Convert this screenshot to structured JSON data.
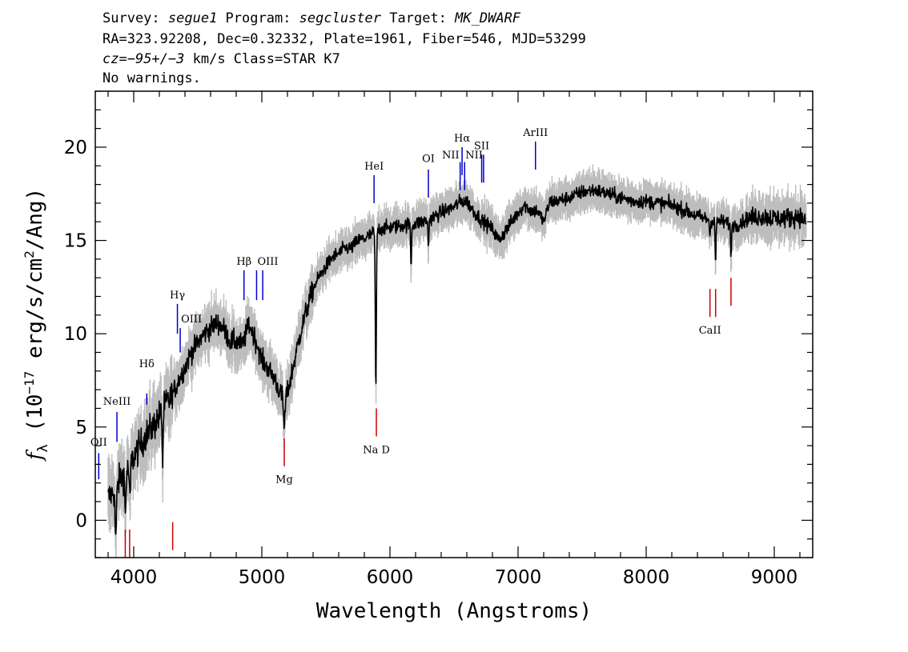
{
  "header": {
    "line1_parts": [
      {
        "text": "Survey: ",
        "italic": false
      },
      {
        "text": "segue1",
        "italic": true
      },
      {
        "text": " Program: ",
        "italic": false
      },
      {
        "text": "segcluster",
        "italic": true
      },
      {
        "text": " Target: ",
        "italic": false
      },
      {
        "text": "MK_DWARF",
        "italic": true
      }
    ],
    "line2": "RA=323.92208, Dec=0.32332, Plate=1961, Fiber=546, MJD=53299",
    "line3_parts": [
      {
        "text": "cz=",
        "italic": true
      },
      {
        "text": "−95+/−3",
        "italic": true
      },
      {
        "text": " km/s Class=STAR K7",
        "italic": false
      }
    ],
    "line4": "No warnings."
  },
  "chart_data": {
    "type": "line",
    "xlabel": "Wavelength (Angstroms)",
    "ylabel_parts": {
      "f": "f",
      "sub": "λ",
      "pre": " (10",
      "exp": "−17",
      "mid": " erg/s/cm",
      "exp2": "2",
      "post": "/Ang)"
    },
    "xlim": [
      3700,
      9300
    ],
    "ylim": [
      -2,
      23
    ],
    "xticks_major": [
      4000,
      5000,
      6000,
      7000,
      8000,
      9000
    ],
    "yticks_major": [
      0,
      5,
      10,
      15,
      20
    ],
    "xticks_minor_step": 200,
    "yticks_minor_step": 1,
    "colors": {
      "flux": "#000000",
      "noise": "#bdbdbd",
      "emission": "#0000cc",
      "absorption": "#cc0000"
    },
    "flux_anchors": [
      [
        3800,
        1.2
      ],
      [
        3850,
        1.6
      ],
      [
        3900,
        2.3
      ],
      [
        3950,
        2.6
      ],
      [
        4000,
        3.4
      ],
      [
        4050,
        4.0
      ],
      [
        4100,
        4.6
      ],
      [
        4150,
        5.0
      ],
      [
        4200,
        5.6
      ],
      [
        4250,
        6.2
      ],
      [
        4300,
        6.7
      ],
      [
        4350,
        7.5
      ],
      [
        4400,
        8.2
      ],
      [
        4450,
        9.0
      ],
      [
        4500,
        9.5
      ],
      [
        4550,
        10.0
      ],
      [
        4600,
        10.3
      ],
      [
        4650,
        10.6
      ],
      [
        4700,
        10.3
      ],
      [
        4750,
        9.6
      ],
      [
        4800,
        9.6
      ],
      [
        4850,
        9.4
      ],
      [
        4900,
        10.5
      ],
      [
        4950,
        9.7
      ],
      [
        5000,
        8.6
      ],
      [
        5050,
        8.1
      ],
      [
        5100,
        7.6
      ],
      [
        5150,
        6.7
      ],
      [
        5200,
        6.8
      ],
      [
        5250,
        8.4
      ],
      [
        5300,
        10.0
      ],
      [
        5350,
        11.3
      ],
      [
        5400,
        12.4
      ],
      [
        5450,
        13.1
      ],
      [
        5500,
        13.6
      ],
      [
        5550,
        14.1
      ],
      [
        5600,
        14.3
      ],
      [
        5650,
        14.6
      ],
      [
        5700,
        14.6
      ],
      [
        5750,
        15.0
      ],
      [
        5800,
        15.1
      ],
      [
        5850,
        15.3
      ],
      [
        5900,
        15.6
      ],
      [
        6000,
        15.7
      ],
      [
        6100,
        15.8
      ],
      [
        6200,
        15.9
      ],
      [
        6300,
        16.1
      ],
      [
        6400,
        16.5
      ],
      [
        6500,
        16.8
      ],
      [
        6550,
        17.1
      ],
      [
        6600,
        17.1
      ],
      [
        6650,
        16.6
      ],
      [
        6700,
        16.2
      ],
      [
        6800,
        15.6
      ],
      [
        6850,
        15.0
      ],
      [
        6900,
        15.5
      ],
      [
        6950,
        16.0
      ],
      [
        7000,
        16.5
      ],
      [
        7050,
        16.9
      ],
      [
        7100,
        16.6
      ],
      [
        7150,
        16.6
      ],
      [
        7200,
        16.0
      ],
      [
        7250,
        17.1
      ],
      [
        7300,
        17.1
      ],
      [
        7400,
        17.3
      ],
      [
        7500,
        17.6
      ],
      [
        7600,
        17.7
      ],
      [
        7700,
        17.5
      ],
      [
        7800,
        17.3
      ],
      [
        7900,
        17.1
      ],
      [
        8000,
        17.1
      ],
      [
        8100,
        17.0
      ],
      [
        8200,
        16.9
      ],
      [
        8300,
        16.6
      ],
      [
        8400,
        16.3
      ],
      [
        8500,
        16.1
      ],
      [
        8600,
        16.0
      ],
      [
        8700,
        15.8
      ],
      [
        8800,
        16.2
      ],
      [
        8900,
        16.3
      ],
      [
        9000,
        16.2
      ],
      [
        9100,
        16.2
      ],
      [
        9200,
        16.3
      ],
      [
        9250,
        16.0
      ]
    ],
    "absorption_features": [
      {
        "center": 3860,
        "depth": 2.6,
        "width": 8
      },
      {
        "center": 3935,
        "depth": 2.2,
        "width": 6
      },
      {
        "center": 3970,
        "depth": 2.0,
        "width": 6
      },
      {
        "center": 4226,
        "depth": 3.0,
        "width": 5
      },
      {
        "center": 5175,
        "depth": 1.6,
        "width": 10
      },
      {
        "center": 5890,
        "depth": 8.5,
        "width": 6
      },
      {
        "center": 6165,
        "depth": 2.2,
        "width": 5
      },
      {
        "center": 6300,
        "depth": 1.5,
        "width": 5
      },
      {
        "center": 8498,
        "depth": 0.9,
        "width": 5
      },
      {
        "center": 8542,
        "depth": 2.3,
        "width": 5
      },
      {
        "center": 8662,
        "depth": 1.9,
        "width": 5
      }
    ],
    "emission_lines": [
      {
        "label": "OII",
        "x": 3727,
        "y_top": 3.6,
        "y_bot": 2.2,
        "label_y": 4.0,
        "label_anchor": "middle"
      },
      {
        "label": "NeIII",
        "x": 3869,
        "y_top": 5.8,
        "y_bot": 4.2,
        "label_y": 6.2,
        "label_anchor": "middle"
      },
      {
        "label": "Hδ",
        "x": 4102,
        "y_top": 6.8,
        "y_bot": 6.2,
        "label_y": 8.2,
        "label_anchor": "middle"
      },
      {
        "label": "Hγ",
        "x": 4341,
        "y_top": 11.6,
        "y_bot": 10.0,
        "label_y": 11.9,
        "label_anchor": "middle"
      },
      {
        "label": "OIII",
        "x": 4363,
        "y_top": 10.3,
        "y_bot": 9.0,
        "label_y": 10.6,
        "label_anchor": "start"
      },
      {
        "label": "Hβ",
        "x": 4861,
        "y_top": 13.4,
        "y_bot": 11.8,
        "label_y": 13.7,
        "label_anchor": "middle"
      },
      {
        "label": "OIII",
        "x": 4959,
        "y_top": 13.4,
        "y_bot": 11.8,
        "label_y": 13.7,
        "label_anchor": "start"
      },
      {
        "label": "",
        "x": 5007,
        "y_top": 13.4,
        "y_bot": 11.8,
        "label_y": 13.7,
        "label_anchor": "start"
      },
      {
        "label": "HeI",
        "x": 5876,
        "y_top": 18.5,
        "y_bot": 17.0,
        "label_y": 18.8,
        "label_anchor": "middle"
      },
      {
        "label": "OI",
        "x": 6300,
        "y_top": 18.8,
        "y_bot": 17.3,
        "label_y": 19.2,
        "label_anchor": "middle"
      },
      {
        "label": "NII",
        "x": 6548,
        "y_top": 19.2,
        "y_bot": 17.7,
        "label_y": 19.4,
        "label_anchor": "end"
      },
      {
        "label": "Hα",
        "x": 6563,
        "y_top": 20.0,
        "y_bot": 18.5,
        "label_y": 20.3,
        "label_anchor": "middle"
      },
      {
        "label": "NII",
        "x": 6583,
        "y_top": 19.2,
        "y_bot": 17.7,
        "label_y": 19.4,
        "label_anchor": "start"
      },
      {
        "label": "SII",
        "x": 6716,
        "y_top": 19.6,
        "y_bot": 18.1,
        "label_y": 19.9,
        "label_anchor": "middle"
      },
      {
        "label": "",
        "x": 6731,
        "y_top": 19.6,
        "y_bot": 18.1,
        "label_y": 19.9,
        "label_anchor": "middle"
      },
      {
        "label": "ArIII",
        "x": 7136,
        "y_top": 20.3,
        "y_bot": 18.8,
        "label_y": 20.6,
        "label_anchor": "middle"
      }
    ],
    "absorption_lines": [
      {
        "label": "",
        "x": 3934,
        "y_top": -0.5,
        "y_bot": -2.0
      },
      {
        "label": "",
        "x": 3968,
        "y_top": -0.5,
        "y_bot": -2.0
      },
      {
        "label": "",
        "x": 4304,
        "y_top": -0.1,
        "y_bot": -1.6
      },
      {
        "label": "Mg",
        "x": 5175,
        "y_top": 4.4,
        "y_bot": 2.9,
        "label_y": 2.0
      },
      {
        "label": "Na D",
        "x": 5894,
        "y_top": 6.0,
        "y_bot": 4.5,
        "label_y": 3.6
      },
      {
        "label": "CaII",
        "x": 8498,
        "y_top": 12.4,
        "y_bot": 10.9,
        "label_y": 10.0
      },
      {
        "label": "",
        "x": 8542,
        "y_top": 12.4,
        "y_bot": 10.9
      },
      {
        "label": "",
        "x": 8662,
        "y_top": 13.0,
        "y_bot": 11.5
      }
    ]
  }
}
